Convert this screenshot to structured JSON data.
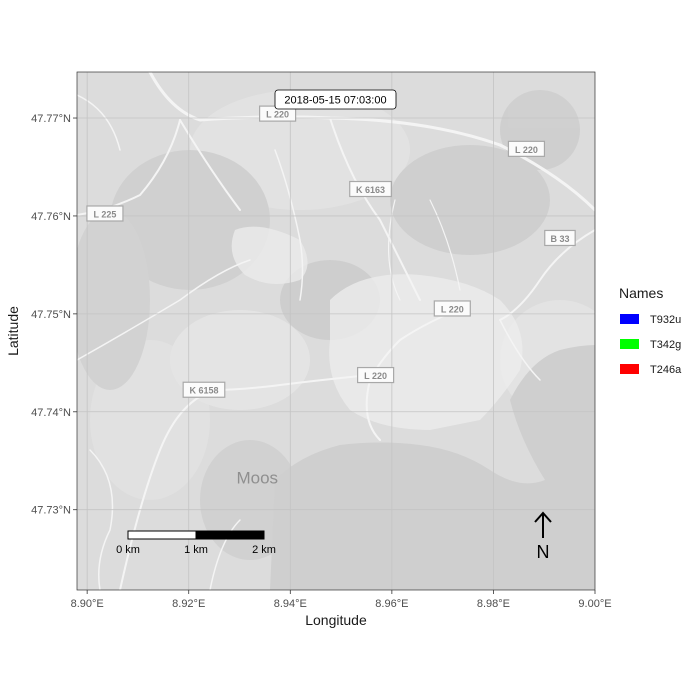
{
  "map": {
    "timestamp": "2018-05-15 07:03:00",
    "xlabel": "Longitude",
    "ylabel": "Latitude",
    "xlim": [
      8.898,
      9.0
    ],
    "ylim": [
      47.7218,
      47.7747
    ],
    "x_ticks": [
      {
        "value": 8.9,
        "label": "8.90°E"
      },
      {
        "value": 8.92,
        "label": "8.92°E"
      },
      {
        "value": 8.94,
        "label": "8.94°E"
      },
      {
        "value": 8.96,
        "label": "8.96°E"
      },
      {
        "value": 8.98,
        "label": "8.98°E"
      },
      {
        "value": 9.0,
        "label": "9.00°E"
      }
    ],
    "y_ticks": [
      {
        "value": 47.73,
        "label": "47.73°N"
      },
      {
        "value": 47.74,
        "label": "47.74°N"
      },
      {
        "value": 47.75,
        "label": "47.75°N"
      },
      {
        "value": 47.76,
        "label": "47.76°N"
      },
      {
        "value": 47.77,
        "label": "47.77°N"
      }
    ],
    "road_labels": [
      {
        "text": "L 225",
        "lon": 8.9035,
        "lat": 47.7602
      },
      {
        "text": "K 6163",
        "lon": 8.9558,
        "lat": 47.7627
      },
      {
        "text": "L 220",
        "lon": 8.9865,
        "lat": 47.7668
      },
      {
        "text": "B 33",
        "lon": 8.9931,
        "lat": 47.7577
      },
      {
        "text": "L 220",
        "lon": 8.9719,
        "lat": 47.7505
      },
      {
        "text": "L 220",
        "lon": 8.9568,
        "lat": 47.7437
      },
      {
        "text": "K 6158",
        "lon": 8.923,
        "lat": 47.7422
      },
      {
        "text": "L 220",
        "lon": 8.9375,
        "lat": 47.7704
      }
    ],
    "place_labels": [
      {
        "text": "Moos",
        "lon": 8.9335,
        "lat": 47.7333
      }
    ],
    "legend": {
      "title": "Names",
      "items": [
        {
          "name": "T932u",
          "color": "#0000ff"
        },
        {
          "name": "T342g",
          "color": "#00ff00"
        },
        {
          "name": "T246a",
          "color": "#ff0000"
        }
      ]
    },
    "scalebar": {
      "labels": [
        "0 km",
        "1 km",
        "2 km"
      ]
    },
    "north_arrow": {
      "label": "N"
    },
    "colors": {
      "panel_bg": "#dedede",
      "water": "#cfcfcf",
      "road": "#f4f4f4",
      "grid": "#c9c9c9"
    }
  }
}
